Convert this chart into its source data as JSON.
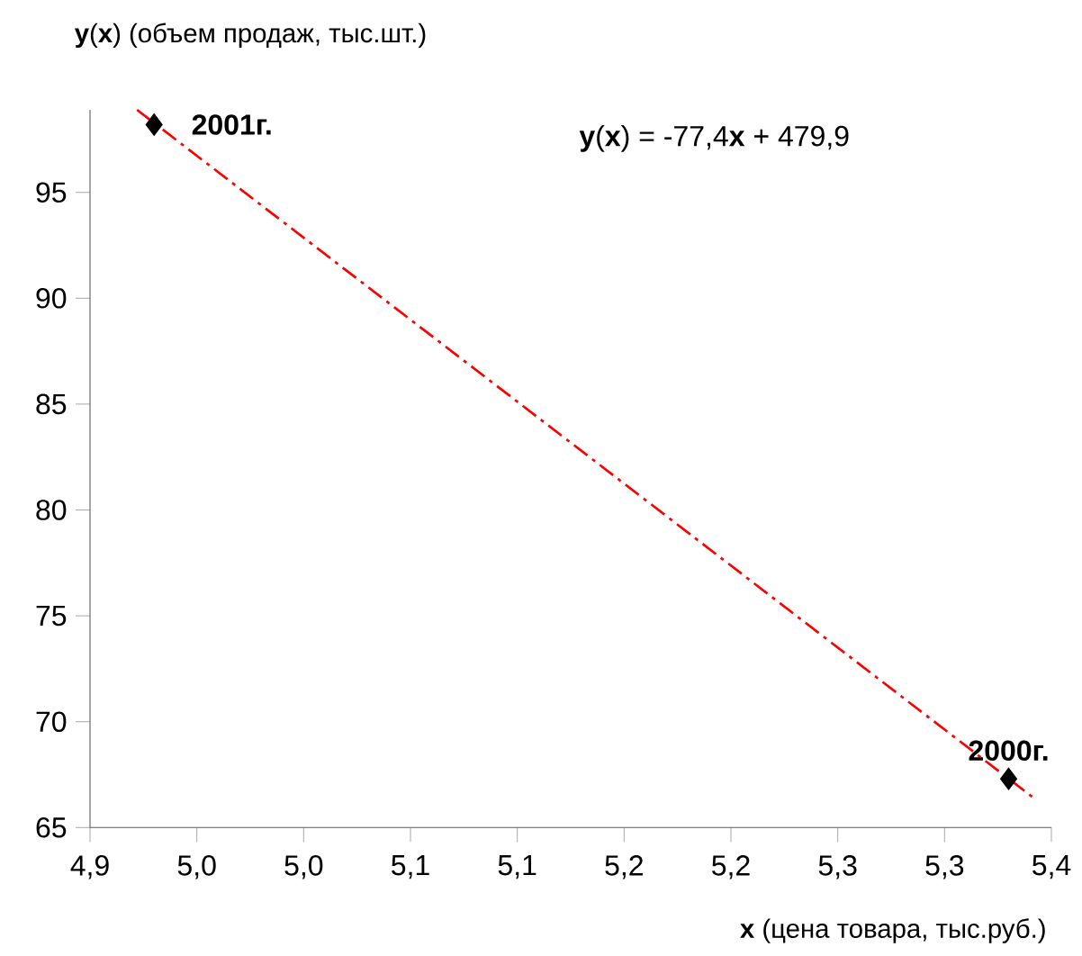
{
  "chart_data": {
    "type": "scatter",
    "ylabel": "**y**(**x**) (объем продаж, тыс.шт.)",
    "xlabel": "**x** (цена товара, тыс.руб.)",
    "series": [
      {
        "color": "#000000",
        "marker": "diamond",
        "x": [
          4.93,
          5.33
        ],
        "values": [
          98.2,
          67.3
        ]
      },
      {
        "type": "line",
        "color": "#ff0000",
        "marker": "none",
        "line_style": "dashed",
        "x": [
          4.922,
          5.343
        ],
        "values": [
          98.9,
          66.3
        ]
      }
    ],
    "annotations": [
      {
        "text": "2001г.",
        "x": 4.93,
        "y": 98.2
      },
      {
        "text": "2000г.",
        "x": 5.33,
        "y": 67.3
      },
      "**y**(**x**) = -77,4**x** + 479,9"
    ],
    "xlim": [
      4.9,
      5.35
    ],
    "ylim": [
      65,
      98.9
    ],
    "xticks": [
      {
        "value": 4.9,
        "label": "4,9"
      },
      {
        "value": 4.95,
        "label": "5,0"
      },
      {
        "value": 5.0,
        "label": "5,0"
      },
      {
        "value": 5.05,
        "label": "5,1"
      },
      {
        "value": 5.1,
        "label": "5,1"
      },
      {
        "value": 5.15,
        "label": "5,2"
      },
      {
        "value": 5.2,
        "label": "5,2"
      },
      {
        "value": 5.25,
        "label": "5,3"
      },
      {
        "value": 5.3,
        "label": "5,3"
      },
      {
        "value": 5.35,
        "label": "5,4"
      }
    ],
    "yticks": [
      65,
      70,
      75,
      80,
      85,
      90,
      95
    ],
    "grid": false
  }
}
